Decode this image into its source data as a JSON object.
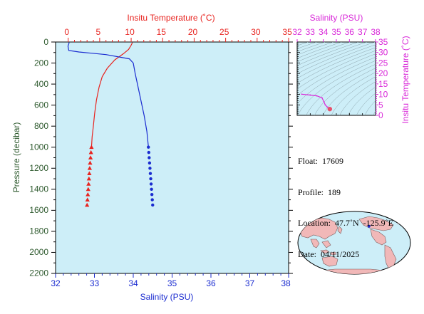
{
  "colors": {
    "temperature": "#e8231f",
    "salinity": "#1a2bd0",
    "pressure_axis": "#2e5a2e",
    "inset_accent": "#d92ad9",
    "plot_background": "#cdeef8",
    "map_marker": "#1a2bd0"
  },
  "chart_data": [
    {
      "type": "line",
      "x_top_axis": {
        "label": "Insitu Temperature (˚C)",
        "range": [
          -2,
          35
        ],
        "ticks": [
          "0",
          "5",
          "10",
          "15",
          "20",
          "25",
          "30",
          "35"
        ]
      },
      "x_bottom_axis": {
        "label": "Salinity (PSU)",
        "range": [
          32,
          38
        ],
        "ticks": [
          "32",
          "33",
          "34",
          "35",
          "36",
          "37",
          "38"
        ]
      },
      "y_axis": {
        "label": "Pressure (decibar)",
        "range": [
          0,
          2200
        ],
        "inverted": true,
        "ticks": [
          "0",
          "200",
          "400",
          "600",
          "800",
          "1000",
          "1200",
          "1400",
          "1600",
          "1800",
          "2000",
          "2200"
        ]
      },
      "grid": false,
      "series": [
        {
          "key": "temperature",
          "axis": "top",
          "profile": [
            {
              "x": 10.2,
              "y": 5
            },
            {
              "x": 10.0,
              "y": 30
            },
            {
              "x": 9.6,
              "y": 70
            },
            {
              "x": 8.8,
              "y": 110
            },
            {
              "x": 7.4,
              "y": 170
            },
            {
              "x": 6.2,
              "y": 250
            },
            {
              "x": 5.4,
              "y": 330
            },
            {
              "x": 4.9,
              "y": 430
            },
            {
              "x": 4.5,
              "y": 550
            },
            {
              "x": 4.2,
              "y": 680
            },
            {
              "x": 4.0,
              "y": 800
            },
            {
              "x": 3.8,
              "y": 900
            },
            {
              "x": 3.7,
              "y": 1000
            }
          ],
          "markers": [
            {
              "x": 3.7,
              "y": 1000
            },
            {
              "x": 3.62,
              "y": 1050
            },
            {
              "x": 3.55,
              "y": 1100
            },
            {
              "x": 3.48,
              "y": 1150
            },
            {
              "x": 3.42,
              "y": 1200
            },
            {
              "x": 3.36,
              "y": 1250
            },
            {
              "x": 3.3,
              "y": 1300
            },
            {
              "x": 3.24,
              "y": 1350
            },
            {
              "x": 3.18,
              "y": 1400
            },
            {
              "x": 3.12,
              "y": 1450
            },
            {
              "x": 3.06,
              "y": 1500
            },
            {
              "x": 3.0,
              "y": 1550
            }
          ]
        },
        {
          "key": "salinity",
          "axis": "bottom",
          "profile": [
            {
              "x": 32.35,
              "y": 5
            },
            {
              "x": 32.32,
              "y": 40
            },
            {
              "x": 32.34,
              "y": 80
            },
            {
              "x": 32.6,
              "y": 95
            },
            {
              "x": 33.3,
              "y": 120
            },
            {
              "x": 33.9,
              "y": 160
            },
            {
              "x": 34.0,
              "y": 200
            },
            {
              "x": 34.05,
              "y": 300
            },
            {
              "x": 34.12,
              "y": 420
            },
            {
              "x": 34.2,
              "y": 560
            },
            {
              "x": 34.28,
              "y": 700
            },
            {
              "x": 34.35,
              "y": 850
            },
            {
              "x": 34.39,
              "y": 1000
            }
          ],
          "markers": [
            {
              "x": 34.39,
              "y": 1000
            },
            {
              "x": 34.4,
              "y": 1050
            },
            {
              "x": 34.41,
              "y": 1100
            },
            {
              "x": 34.42,
              "y": 1150
            },
            {
              "x": 34.43,
              "y": 1200
            },
            {
              "x": 34.44,
              "y": 1250
            },
            {
              "x": 34.45,
              "y": 1300
            },
            {
              "x": 34.46,
              "y": 1350
            },
            {
              "x": 34.47,
              "y": 1400
            },
            {
              "x": 34.48,
              "y": 1450
            },
            {
              "x": 34.49,
              "y": 1500
            },
            {
              "x": 34.5,
              "y": 1550
            }
          ]
        }
      ]
    },
    {
      "type": "scatter",
      "x_axis": {
        "label": "Salinity (PSU)",
        "range": [
          32,
          38
        ],
        "ticks": [
          "32",
          "33",
          "34",
          "35",
          "36",
          "37",
          "38"
        ]
      },
      "y_axis": {
        "label": "Insitu Temperature (˚C)",
        "range": [
          0,
          35
        ],
        "ticks": [
          "0",
          "5",
          "10",
          "15",
          "20",
          "25",
          "30",
          "35"
        ]
      },
      "density_contours": true,
      "series": [
        {
          "key": "ts",
          "points": [
            {
              "x": 32.35,
              "y": 10.1
            },
            {
              "x": 33.0,
              "y": 9.7
            },
            {
              "x": 33.5,
              "y": 9.3
            },
            {
              "x": 33.9,
              "y": 8.4
            },
            {
              "x": 34.05,
              "y": 6.5
            },
            {
              "x": 34.15,
              "y": 5.0
            },
            {
              "x": 34.3,
              "y": 4.0
            },
            {
              "x": 34.5,
              "y": 3.0
            }
          ]
        }
      ]
    }
  ],
  "info": {
    "float": "Float:  17609",
    "profile": "Profile:  189",
    "location": "Location:  47.7˚N  -125.9˚E",
    "date": "Date:  04/11/2025"
  },
  "map": {
    "marker_lat": 47.7,
    "marker_lon": -125.9
  }
}
